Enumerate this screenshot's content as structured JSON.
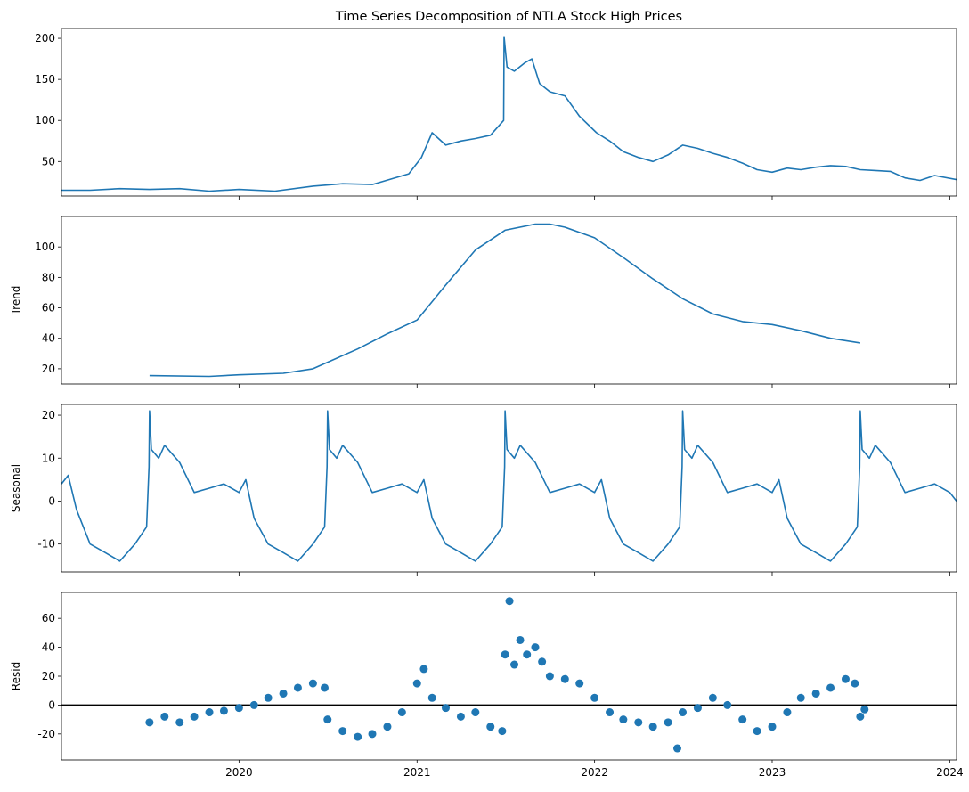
{
  "chart_data": {
    "type": "line",
    "title": "Time Series Decomposition of NTLA Stock High Prices",
    "x_range": [
      "2019-01-01",
      "2024-01-15"
    ],
    "x_tick_labels": [
      "2020",
      "2021",
      "2022",
      "2023",
      "2024"
    ],
    "x_ticks": [
      "2020-01-01",
      "2021-01-01",
      "2022-01-01",
      "2023-01-01",
      "2024-01-01"
    ],
    "line_color": "#1f77b4",
    "panels": [
      {
        "id": "observed",
        "type": "line",
        "ylabel": "",
        "ylim": [
          8,
          212
        ],
        "yticks": [
          50,
          100,
          150,
          200
        ],
        "series": {
          "x": [
            "2019-01-01",
            "2019-03-01",
            "2019-05-01",
            "2019-07-01",
            "2019-09-01",
            "2019-11-01",
            "2020-01-01",
            "2020-03-15",
            "2020-06-01",
            "2020-08-01",
            "2020-10-01",
            "2020-12-15",
            "2021-01-10",
            "2021-02-01",
            "2021-03-01",
            "2021-04-01",
            "2021-05-01",
            "2021-06-01",
            "2021-06-28",
            "2021-06-29",
            "2021-07-05",
            "2021-07-20",
            "2021-08-10",
            "2021-08-25",
            "2021-09-10",
            "2021-10-01",
            "2021-11-01",
            "2021-12-01",
            "2022-01-05",
            "2022-02-01",
            "2022-03-01",
            "2022-04-01",
            "2022-05-01",
            "2022-06-01",
            "2022-07-01",
            "2022-08-01",
            "2022-09-01",
            "2022-10-01",
            "2022-11-01",
            "2022-12-01",
            "2023-01-01",
            "2023-02-01",
            "2023-03-01",
            "2023-04-01",
            "2023-05-01",
            "2023-06-01",
            "2023-07-01",
            "2023-08-01",
            "2023-09-01",
            "2023-10-01",
            "2023-11-01",
            "2023-12-01",
            "2024-01-15"
          ],
          "values": [
            15,
            15,
            17,
            16,
            17,
            14,
            16,
            14,
            20,
            23,
            22,
            35,
            55,
            85,
            70,
            75,
            78,
            82,
            100,
            202,
            165,
            160,
            170,
            175,
            145,
            135,
            130,
            105,
            85,
            75,
            62,
            55,
            50,
            58,
            70,
            66,
            60,
            55,
            48,
            40,
            37,
            42,
            40,
            43,
            45,
            44,
            40,
            39,
            38,
            30,
            27,
            33,
            28
          ]
        }
      },
      {
        "id": "trend",
        "type": "line",
        "ylabel": "Trend",
        "ylim": [
          10,
          120
        ],
        "yticks": [
          20,
          40,
          60,
          80,
          100
        ],
        "series": {
          "x": [
            "2019-07-01",
            "2019-11-01",
            "2020-01-01",
            "2020-04-01",
            "2020-06-01",
            "2020-09-01",
            "2020-11-01",
            "2021-01-01",
            "2021-03-01",
            "2021-05-01",
            "2021-07-01",
            "2021-09-01",
            "2021-10-01",
            "2021-11-01",
            "2022-01-01",
            "2022-03-01",
            "2022-05-01",
            "2022-07-01",
            "2022-09-01",
            "2022-11-01",
            "2023-01-01",
            "2023-03-01",
            "2023-05-01",
            "2023-07-01"
          ],
          "values": [
            15.5,
            15,
            16,
            17,
            20,
            33,
            43,
            52,
            75,
            98,
            111,
            115,
            115,
            113,
            106,
            93,
            79,
            66,
            56,
            51,
            49,
            45,
            40,
            37
          ]
        }
      },
      {
        "id": "seasonal",
        "type": "line",
        "ylabel": "Seasonal",
        "ylim": [
          -16.5,
          22.5
        ],
        "yticks": [
          -10,
          0,
          10,
          20
        ],
        "series": {
          "x": [
            "2019-01-01",
            "2019-01-15",
            "2019-02-01",
            "2019-03-01",
            "2019-04-01",
            "2019-05-01",
            "2019-06-01",
            "2019-06-25",
            "2019-06-30",
            "2019-07-01",
            "2019-07-05",
            "2019-07-20",
            "2019-08-01",
            "2019-09-01",
            "2019-10-01",
            "2019-11-01",
            "2019-12-01",
            "2020-01-01",
            "2020-01-15",
            "2020-02-01",
            "2020-03-01",
            "2020-04-01",
            "2020-05-01",
            "2020-06-01",
            "2020-06-25",
            "2020-06-30",
            "2020-07-01",
            "2020-07-05",
            "2020-07-20",
            "2020-08-01",
            "2020-09-01",
            "2020-10-01",
            "2020-11-01",
            "2020-12-01",
            "2021-01-01",
            "2021-01-15",
            "2021-02-01",
            "2021-03-01",
            "2021-04-01",
            "2021-05-01",
            "2021-06-01",
            "2021-06-25",
            "2021-06-30",
            "2021-07-01",
            "2021-07-05",
            "2021-07-20",
            "2021-08-01",
            "2021-09-01",
            "2021-10-01",
            "2021-11-01",
            "2021-12-01",
            "2022-01-01",
            "2022-01-15",
            "2022-02-01",
            "2022-03-01",
            "2022-04-01",
            "2022-05-01",
            "2022-06-01",
            "2022-06-25",
            "2022-06-30",
            "2022-07-01",
            "2022-07-05",
            "2022-07-20",
            "2022-08-01",
            "2022-09-01",
            "2022-10-01",
            "2022-11-01",
            "2022-12-01",
            "2023-01-01",
            "2023-01-15",
            "2023-02-01",
            "2023-03-01",
            "2023-04-01",
            "2023-05-01",
            "2023-06-01",
            "2023-06-25",
            "2023-06-30",
            "2023-07-01",
            "2023-07-05",
            "2023-07-20",
            "2023-08-01",
            "2023-09-01",
            "2023-10-01",
            "2023-11-01",
            "2023-12-01",
            "2024-01-01",
            "2024-01-15"
          ],
          "values": [
            4,
            6,
            -2,
            -10,
            -12,
            -14,
            -10,
            -6,
            8,
            21,
            12,
            10,
            13,
            9,
            2,
            3,
            4,
            2,
            5,
            -4,
            -10,
            -12,
            -14,
            -10,
            -6,
            8,
            21,
            12,
            10,
            13,
            9,
            2,
            3,
            4,
            2,
            5,
            -4,
            -10,
            -12,
            -14,
            -10,
            -6,
            8,
            21,
            12,
            10,
            13,
            9,
            2,
            3,
            4,
            2,
            5,
            -4,
            -10,
            -12,
            -14,
            -10,
            -6,
            8,
            21,
            12,
            10,
            13,
            9,
            2,
            3,
            4,
            2,
            5,
            -4,
            -10,
            -12,
            -14,
            -10,
            -6,
            8,
            21,
            12,
            10,
            13,
            9,
            2,
            3,
            4,
            2,
            0
          ]
        }
      },
      {
        "id": "resid",
        "type": "scatter",
        "ylabel": "Resid",
        "ylim": [
          -38,
          78
        ],
        "yticks": [
          -20,
          0,
          20,
          40,
          60
        ],
        "zero_line": true,
        "series": {
          "x": [
            "2019-07-01",
            "2019-08-01",
            "2019-09-01",
            "2019-10-01",
            "2019-11-01",
            "2019-12-01",
            "2020-01-01",
            "2020-02-01",
            "2020-03-01",
            "2020-04-01",
            "2020-05-01",
            "2020-06-01",
            "2020-06-25",
            "2020-07-01",
            "2020-08-01",
            "2020-09-01",
            "2020-10-01",
            "2020-11-01",
            "2020-12-01",
            "2021-01-01",
            "2021-01-15",
            "2021-02-01",
            "2021-03-01",
            "2021-04-01",
            "2021-05-01",
            "2021-06-01",
            "2021-06-25",
            "2021-07-01",
            "2021-07-10",
            "2021-07-20",
            "2021-08-01",
            "2021-08-15",
            "2021-09-01",
            "2021-09-15",
            "2021-10-01",
            "2021-11-01",
            "2021-12-01",
            "2022-01-01",
            "2022-02-01",
            "2022-03-01",
            "2022-04-01",
            "2022-05-01",
            "2022-06-01",
            "2022-06-20",
            "2022-07-01",
            "2022-08-01",
            "2022-09-01",
            "2022-10-01",
            "2022-11-01",
            "2022-12-01",
            "2023-01-01",
            "2023-02-01",
            "2023-03-01",
            "2023-04-01",
            "2023-05-01",
            "2023-06-01",
            "2023-06-20",
            "2023-07-01",
            "2023-07-10"
          ],
          "values": [
            -12,
            -8,
            -12,
            -8,
            -5,
            -4,
            -2,
            0,
            5,
            8,
            12,
            15,
            12,
            -10,
            -18,
            -22,
            -20,
            -15,
            -5,
            15,
            25,
            5,
            -2,
            -8,
            -5,
            -15,
            -18,
            35,
            72,
            28,
            45,
            35,
            40,
            30,
            20,
            18,
            15,
            5,
            -5,
            -10,
            -12,
            -15,
            -12,
            -30,
            -5,
            -2,
            5,
            0,
            -10,
            -18,
            -15,
            -5,
            5,
            8,
            12,
            18,
            15,
            -8,
            -3
          ]
        }
      }
    ]
  }
}
